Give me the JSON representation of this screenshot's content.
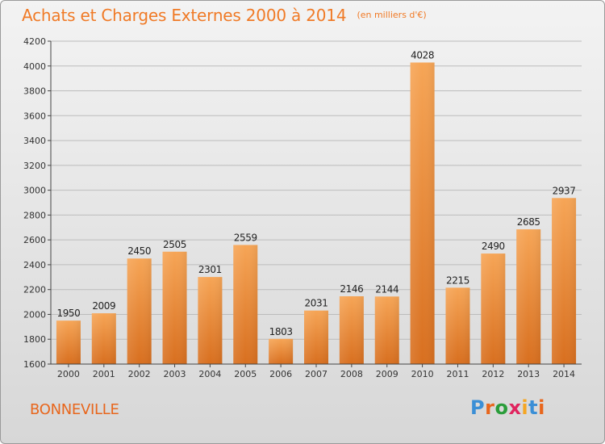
{
  "header": {
    "title": "Achats et Charges Externes 2000 à 2014",
    "subtitle": "(en milliers d'€)"
  },
  "footer": {
    "place": "BONNEVILLE",
    "brand": "Proxiti",
    "brand_colors": [
      "#3b8fd6",
      "#e8661c",
      "#2a9d3a",
      "#e0245e",
      "#f5a623",
      "#3b8fd6",
      "#e8661c"
    ]
  },
  "colors": {
    "bar_light": "#f6a556",
    "bar_dark": "#d86f1f",
    "axis": "#444444",
    "grid": "#bcbcbc"
  },
  "chart_data": {
    "type": "bar",
    "categories": [
      "2000",
      "2001",
      "2002",
      "2003",
      "2004",
      "2005",
      "2006",
      "2007",
      "2008",
      "2009",
      "2010",
      "2011",
      "2012",
      "2013",
      "2014"
    ],
    "values": [
      1950,
      2009,
      2450,
      2505,
      2301,
      2559,
      1803,
      2031,
      2146,
      2144,
      4028,
      2215,
      2490,
      2685,
      2937
    ],
    "ylim": [
      1600,
      4200
    ],
    "yticks": [
      1600,
      1800,
      2000,
      2200,
      2400,
      2600,
      2800,
      3000,
      3200,
      3400,
      3600,
      3800,
      4000,
      4200
    ],
    "grid": true,
    "data_labels": true
  }
}
